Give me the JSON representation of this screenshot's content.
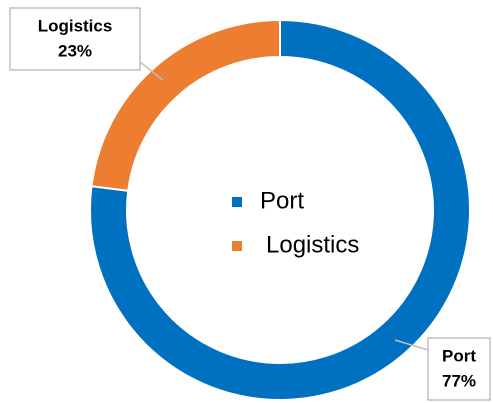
{
  "chart_data": {
    "type": "donut",
    "categories": [
      "Port",
      "Logistics"
    ],
    "values": [
      77,
      23
    ],
    "value_labels": [
      "77%",
      "23%"
    ],
    "colors": [
      "#0070c0",
      "#ed7d31"
    ],
    "legend": "center"
  }
}
